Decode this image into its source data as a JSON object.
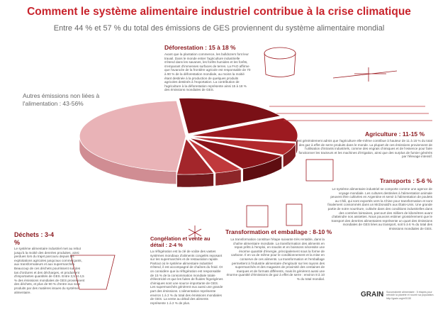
{
  "title": "Comment le système alimentaire industriel contribue à la crise climatique",
  "subtitle": "Entre 44 % et 57 % du total des émissions de GES proviennent du système alimentaire mondial",
  "other_emissions": "Autres émissions non liées à l'alimentation : 43-56%",
  "sections": [
    {
      "heading": "Déforestation : 15 à 18 %",
      "body": "Avant que la plantation commence, les bulldozers font leur travail. Dans le monde entier l'agriculture industrielle s'étend dans les savanes, les forêts humides et les forêts, s'emparant d'immenses surfaces de terres. La FAO affirme que l'avancée de la frontière agricole est responsable de 70 à 90 % de la déforestation mondiale, au moins la moitié étant destinée à la production de quelques produits agricoles destinés à l'exportation. La contribution de l'agriculture à la déforestation représente ainsi 15 à 18 % des émissions mondiales de GES."
    },
    {
      "heading": "Agriculture : 11-15 %",
      "body": "Il est généralement admis que l'agriculture elle-même contribue à hauteur de 11 à 15 % du total des gaz à effet de serre produits dans le monde. La plupart de ces émissions proviennent de l'utilisation d'intrants industriels, comme des engrais chimiques et de l'essence pour faire fonctionner les tracteurs et les machines d'irrigation, ainsi que des surplus de fumier générés par l'élevage intensif."
    },
    {
      "heading": "Transports : 5-6 %",
      "body": "Le système alimentaire industriel se comporte comme une agence de voyage mondiale. Les cultures destinées à l'alimentation animale peuvent être cultivées en Argentine et servir à l'alimentation de poulets au Chili, qui sont exportés vers la Chine pour transformation et sont finalement consommés dans un McDonald's aux États-Unis. Une grande partie de notre nourriture, cultivée dans des conditions industrielles dans des contrées lointaines, parcourt des milliers de kilomètres avant d'atteindre nos assiettes. Nous pouvons estimer grossièrement que le transport des denrées alimentaires représente un quart des émissions mondiales de GES liées au transport, soit 5 à 6 % du total des émissions mondiales de GES."
    },
    {
      "heading": "Transformation et emballage : 8-10 %",
      "body": "La transformation constitue l'étape suivante très rentable, dans la chaîne alimentaire mondiale. La transformation des aliments en repas prêts à l'emploi, en snacks et en boissons nécessite une énorme quantité d'énergie, principalement sous la forme de carbone. Il en va de même pour le conditionnement et la mise en conserve de ces aliments. La transformation et l'emballage permettent à l'industrie alimentaire d'engloutir sur les rayons des supermarchés et des magasins de proximité des centaines de marques et de formats différents, mais ils génèrent aussi une énorme quantité d'émissions de gaz à effet de serre : environ 8 à 10 % du total mondial."
    },
    {
      "heading": "Congélation et vente au détail : 2-4 %",
      "body": "La réfrigération est la clé de voûte des vastes systèmes mondiaux d'aliments congelés reposant sur les supermarchés et de restauration rapide. Partout où le système alimentaire industriel s'étend, il est accompagné de chaînes du froid. Or on considère que la réfrigération est responsable de 15 % de la consommation mondiale totale d'électricité et que les fuites de fluides frigorigènes chimiques sont une source importante de GES. Les supermarchés génèrent eux aussi une grande part des émissions. L'alimentation représente environ 1 à 2 % du total des émissions mondiales de GES. La vente au détail des aliments représente 1 à 2 % de plus."
    },
    {
      "heading": "Déchets : 3-4 %",
      "body": "Le système alimentaire industriel met au rebut jusqu'à la moitié des denrées produites, ainsi perdues lors du trajet parcouru depuis les exploitations agricoles jusqu'aux commerçants, aux transformateurs et aux supermarchés. Beaucoup de ces déchets pourrissent sur des tas d'ordures et des décharges, et produisent d'importantes quantités de GES. Entre 3,5 et 4,5 % des émissions mondiales de GES proviennent des déchets, et plus de 90 % d'entre eux sont produits par des matières issues du système alimentaire."
    }
  ],
  "footer": {
    "text": "Souveraineté alimentaire : 5 étapes pour refroidir la planète et nourrir sa population. http://grain.org/e/5130",
    "logo": "GRAIN"
  }
}
